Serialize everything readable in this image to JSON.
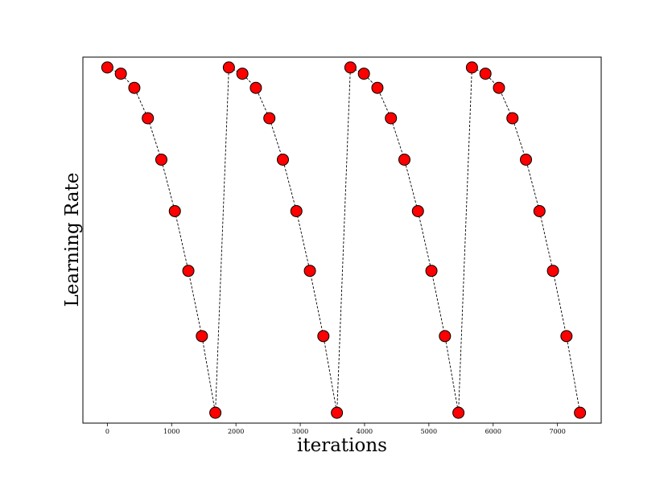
{
  "chart_data": {
    "type": "line",
    "title": "",
    "xlabel": "iterations",
    "ylabel": "Learning Rate",
    "xlim": [
      -380,
      7680
    ],
    "ylim": [
      -0.03,
      1.03
    ],
    "xticks": [
      0,
      1000,
      2000,
      3000,
      4000,
      5000,
      6000,
      7000
    ],
    "xtick_labels": [
      "0",
      "1000",
      "2000",
      "3000",
      "4000",
      "5000",
      "6000",
      "7000"
    ],
    "yticks_shown": false,
    "grid": false,
    "legend": false,
    "line_color": "#000000",
    "line_style": "dashed",
    "marker_color": "#ff0000",
    "marker_edge_color": "#000000",
    "series": [
      {
        "x": [
          0,
          210,
          420,
          630,
          840,
          1050,
          1260,
          1470,
          1680,
          1890,
          2100,
          2310,
          2520,
          2730,
          2940,
          3150,
          3360,
          3570,
          3780,
          3990,
          4200,
          4410,
          4620,
          4830,
          5040,
          5250,
          5460,
          5670,
          5880,
          6090,
          6300,
          6510,
          6720,
          6930,
          7140,
          7350
        ],
        "y": [
          1.0,
          0.982,
          0.941,
          0.853,
          0.733,
          0.584,
          0.411,
          0.222,
          0.0,
          1.0,
          0.982,
          0.941,
          0.853,
          0.733,
          0.584,
          0.411,
          0.222,
          0.0,
          1.0,
          0.982,
          0.941,
          0.853,
          0.733,
          0.584,
          0.411,
          0.222,
          0.0,
          1.0,
          0.982,
          0.941,
          0.853,
          0.733,
          0.584,
          0.411,
          0.222,
          0.0
        ]
      }
    ]
  }
}
